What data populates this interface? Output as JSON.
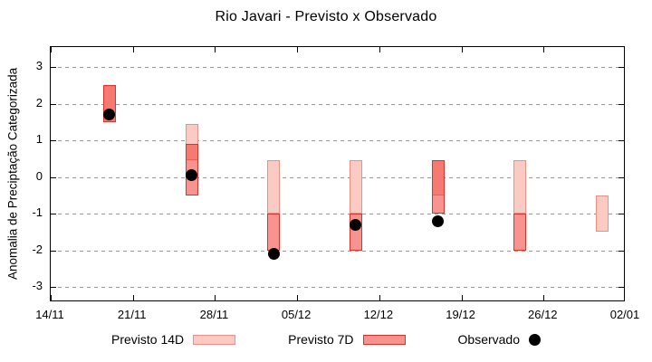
{
  "title": "Rio Javari - Previsto x Observado",
  "colors": {
    "previsto_14d_fill": "#fbcac2",
    "previsto_14d_border": "#ee8e84",
    "previsto_7d_fill": "rgba(240,50,40,0.52)",
    "previsto_7d_solid": "#f4948f",
    "previsto_7d_border": "#e03028",
    "observado": "#000000",
    "grid": "#9a9a9a",
    "axis": "#000000"
  },
  "legend": [
    {
      "label": "Previsto 14D",
      "key": "previsto_14d",
      "marker": "box14"
    },
    {
      "label": "Previsto 7D",
      "key": "previsto_7d",
      "marker": "box7"
    },
    {
      "label": "Observado",
      "key": "observado",
      "marker": "dot"
    }
  ],
  "chart_data": {
    "type": "bar",
    "subtype": "range-bars-with-scatter",
    "title": "Rio Javari - Previsto x Observado",
    "xlabel": "",
    "ylabel": "Anomalia de Preciptação Categorizada",
    "ylim": [
      -3.45,
      3.55
    ],
    "grid": true,
    "legend_position": "bottom",
    "y_ticks": [
      3,
      2,
      1,
      0,
      -1,
      -2,
      -3
    ],
    "x_tick_labels": [
      "14/11",
      "21/11",
      "28/11",
      "05/12",
      "12/12",
      "19/12",
      "26/12",
      "02/01"
    ],
    "x_tick_days": [
      0,
      7,
      14,
      21,
      28,
      35,
      42,
      49
    ],
    "series": [
      {
        "name": "Previsto 14D",
        "type": "range-bar",
        "points": [
          {
            "date": "19/11",
            "day": 5,
            "low": 1.5,
            "high": 2.5
          },
          {
            "date": "26/11",
            "day": 12,
            "low": 0.45,
            "high": 1.45
          },
          {
            "date": "03/12",
            "day": 19,
            "low": -1.0,
            "high": 0.45
          },
          {
            "date": "10/12",
            "day": 26,
            "low": -1.0,
            "high": 0.45
          },
          {
            "date": "17/12",
            "day": 33,
            "low": -0.5,
            "high": 0.45
          },
          {
            "date": "24/12",
            "day": 40,
            "low": -1.0,
            "high": 0.45
          },
          {
            "date": "31/12",
            "day": 47,
            "low": -1.5,
            "high": -0.5
          }
        ]
      },
      {
        "name": "Previsto 7D",
        "type": "range-bar",
        "points": [
          {
            "date": "19/11",
            "day": 5,
            "low": 1.5,
            "high": 2.5
          },
          {
            "date": "26/11",
            "day": 12,
            "low": -0.5,
            "high": 0.9
          },
          {
            "date": "03/12",
            "day": 19,
            "low": -2.0,
            "high": -1.0
          },
          {
            "date": "10/12",
            "day": 26,
            "low": -2.0,
            "high": -1.0
          },
          {
            "date": "17/12",
            "day": 33,
            "low": -1.0,
            "high": 0.45
          },
          {
            "date": "24/12",
            "day": 40,
            "low": -2.0,
            "high": -1.0
          }
        ]
      },
      {
        "name": "Observado",
        "type": "scatter",
        "points": [
          {
            "date": "19/11",
            "day": 5,
            "value": 1.7
          },
          {
            "date": "26/11",
            "day": 12,
            "value": 0.05
          },
          {
            "date": "03/12",
            "day": 19,
            "value": -2.1
          },
          {
            "date": "10/12",
            "day": 26,
            "value": -1.3
          },
          {
            "date": "17/12",
            "day": 33,
            "value": -1.2
          }
        ]
      }
    ]
  }
}
